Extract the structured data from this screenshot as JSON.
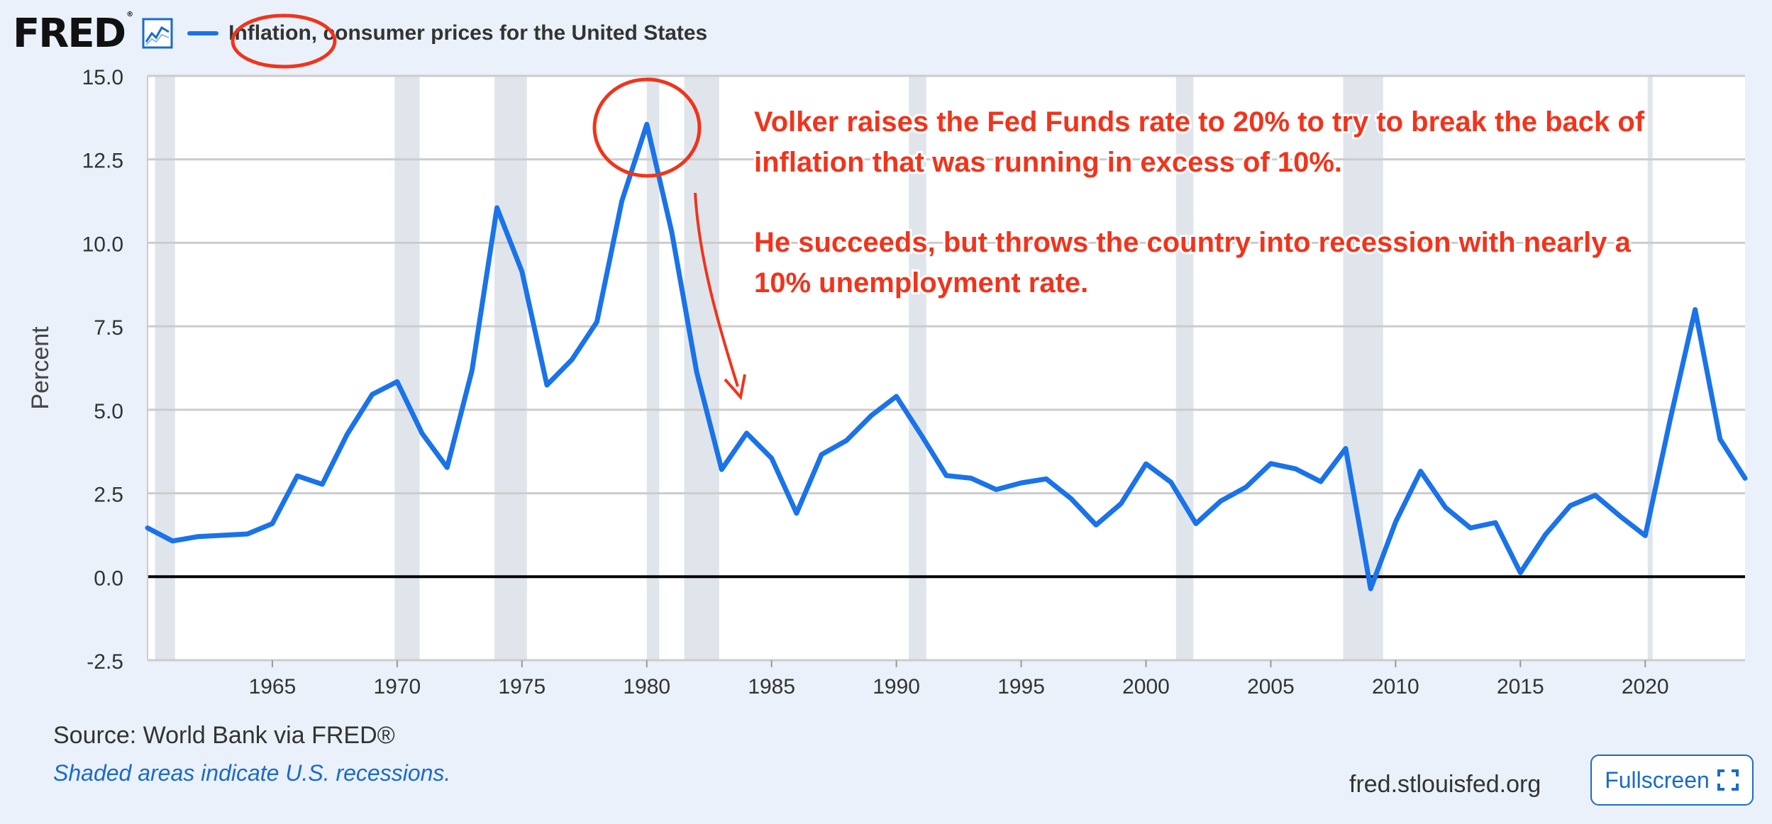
{
  "header": {
    "logo_text": "FRED",
    "logo_mark": "®",
    "series_title": "Inflation, consumer prices for the United States"
  },
  "footer": {
    "source": "Source: World Bank via FRED®",
    "recession_note": "Shaded areas indicate U.S. recessions.",
    "site": "fred.stlouisfed.org",
    "fullscreen_label": "Fullscreen"
  },
  "annotations": {
    "line1": "Volker raises the Fed Funds rate to 20% to try to break the back of",
    "line2": "inflation that was running in excess of 10%.",
    "line3": "He succeeds, but throws the country into recession with nearly a",
    "line4": "10% unemployment rate."
  },
  "colors": {
    "series": "#1a73e8",
    "annotation": "#f0341c",
    "recession": "#e0e5ec",
    "background": "#eaf1fa"
  },
  "chart_data": {
    "type": "line",
    "title": "Inflation, consumer prices for the United States",
    "ylabel": "Percent",
    "xlabel": "",
    "xlim": [
      1960,
      2024
    ],
    "ylim": [
      -2.5,
      15.0
    ],
    "yticks": [
      "15.0",
      "12.5",
      "10.0",
      "7.5",
      "5.0",
      "2.5",
      "0.0",
      "-2.5"
    ],
    "xticks": [
      "1965",
      "1970",
      "1975",
      "1980",
      "1985",
      "1990",
      "1995",
      "2000",
      "2005",
      "2010",
      "2015",
      "2020"
    ],
    "grid": true,
    "series": [
      {
        "name": "Inflation, consumer prices for the United States",
        "x": [
          1960,
          1961,
          1962,
          1963,
          1964,
          1965,
          1966,
          1967,
          1968,
          1969,
          1970,
          1971,
          1972,
          1973,
          1974,
          1975,
          1976,
          1977,
          1978,
          1979,
          1980,
          1981,
          1982,
          1983,
          1984,
          1985,
          1986,
          1987,
          1988,
          1989,
          1990,
          1991,
          1992,
          1993,
          1994,
          1995,
          1996,
          1997,
          1998,
          1999,
          2000,
          2001,
          2002,
          2003,
          2004,
          2005,
          2006,
          2007,
          2008,
          2009,
          2010,
          2011,
          2012,
          2013,
          2014,
          2015,
          2016,
          2017,
          2018,
          2019,
          2020,
          2021,
          2022,
          2023,
          2024
        ],
        "y": [
          1.46,
          1.07,
          1.2,
          1.24,
          1.28,
          1.59,
          3.02,
          2.77,
          4.27,
          5.46,
          5.84,
          4.29,
          3.27,
          6.18,
          11.05,
          9.14,
          5.74,
          6.5,
          7.63,
          11.25,
          13.55,
          10.33,
          6.13,
          3.21,
          4.3,
          3.55,
          1.9,
          3.66,
          4.08,
          4.83,
          5.4,
          4.24,
          3.03,
          2.95,
          2.61,
          2.81,
          2.93,
          2.34,
          1.55,
          2.19,
          3.38,
          2.83,
          1.59,
          2.27,
          2.68,
          3.39,
          3.23,
          2.85,
          3.84,
          -0.36,
          1.64,
          3.16,
          2.07,
          1.46,
          1.62,
          0.12,
          1.26,
          2.13,
          2.44,
          1.81,
          1.23,
          4.7,
          8.0,
          4.12,
          2.95
        ]
      }
    ],
    "recessions": [
      [
        1960.3,
        1961.1
      ],
      [
        1969.9,
        1970.9
      ],
      [
        1973.9,
        1975.2
      ],
      [
        1980.0,
        1980.5
      ],
      [
        1981.5,
        1982.9
      ],
      [
        1990.5,
        1991.2
      ],
      [
        2001.2,
        2001.9
      ],
      [
        2007.9,
        2009.5
      ],
      [
        2020.1,
        2020.3
      ]
    ]
  }
}
